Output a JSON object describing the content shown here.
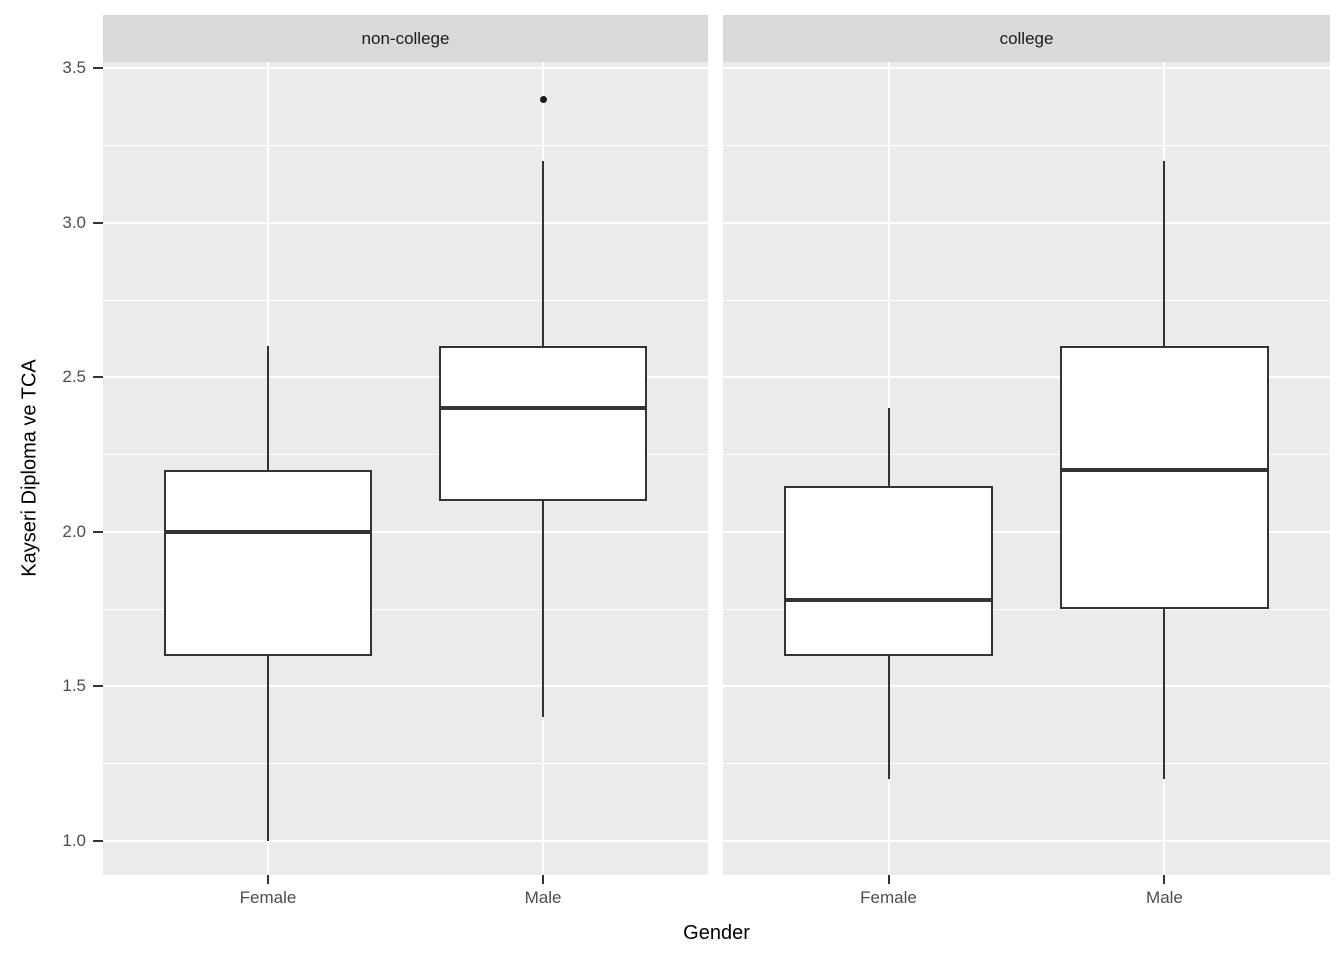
{
  "chart_data": {
    "type": "boxplot",
    "title": "",
    "xlabel": "Gender",
    "ylabel": "Kayseri Diploma ve TCA",
    "x_categories": [
      "Female",
      "Male"
    ],
    "y_ticks": [
      3.5,
      3.0,
      2.5,
      2.0,
      1.5,
      1.0
    ],
    "y_minor_ticks": [
      3.25,
      2.75,
      2.25,
      1.75,
      1.25
    ],
    "ylim": [
      0.89,
      3.52
    ],
    "legend": "none",
    "grid": "major-and-minor",
    "facets": [
      {
        "label": "non-college",
        "boxes": [
          {
            "category": "Female",
            "whisker_low": 1.0,
            "q1": 1.6,
            "median": 2.0,
            "q3": 2.2,
            "whisker_high": 2.6,
            "outliers": []
          },
          {
            "category": "Male",
            "whisker_low": 1.4,
            "q1": 2.1,
            "median": 2.4,
            "q3": 2.6,
            "whisker_high": 3.2,
            "outliers": [
              3.4
            ]
          }
        ]
      },
      {
        "label": "college",
        "boxes": [
          {
            "category": "Female",
            "whisker_low": 1.2,
            "q1": 1.6,
            "median": 1.78,
            "q3": 2.15,
            "whisker_high": 2.4,
            "outliers": []
          },
          {
            "category": "Male",
            "whisker_low": 1.2,
            "q1": 1.75,
            "median": 2.2,
            "q3": 2.6,
            "whisker_high": 3.2,
            "outliers": []
          }
        ]
      }
    ],
    "colors": {
      "panel_bg": "#ebebeb",
      "strip_bg": "#d9d9d9",
      "gridline": "#ffffff",
      "box_stroke": "#333333",
      "box_fill": "#ffffff",
      "tick_label": "#4d4d4d",
      "axis_title": "#000000"
    }
  }
}
